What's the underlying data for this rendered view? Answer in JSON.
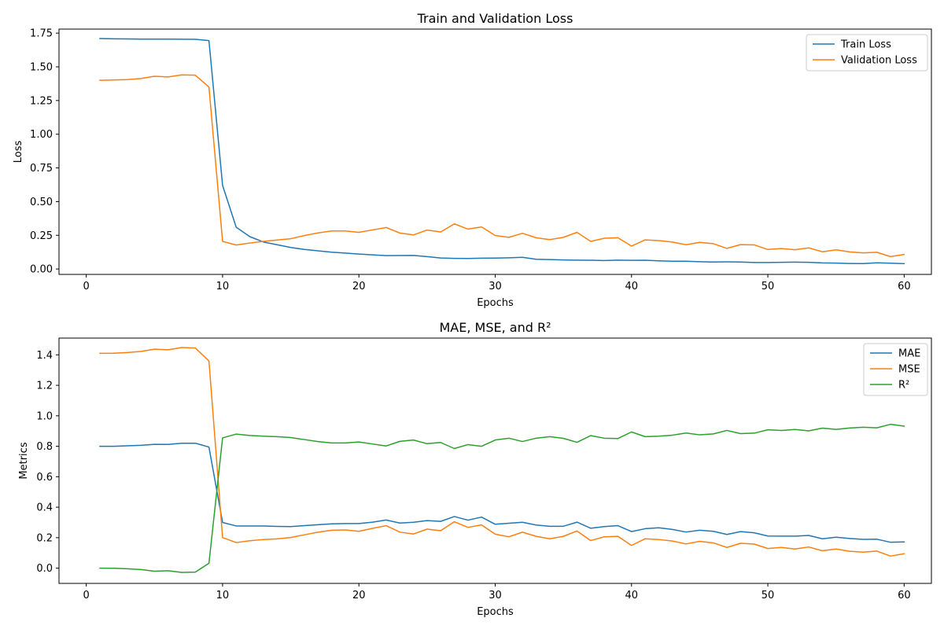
{
  "colors": {
    "blue": "#1f77b4",
    "orange": "#ff7f0e",
    "green": "#2ca02c"
  },
  "chart_data": [
    {
      "type": "line",
      "title": "Train and Validation Loss",
      "xlabel": "Epochs",
      "ylabel": "Loss",
      "xlim": [
        -2,
        62
      ],
      "ylim": [
        -0.04,
        1.78
      ],
      "xticks": [
        0,
        10,
        20,
        30,
        40,
        50,
        60
      ],
      "yticks": [
        0.0,
        0.25,
        0.5,
        0.75,
        1.0,
        1.25,
        1.5,
        1.75
      ],
      "ytick_decimals": 2,
      "legend_position": "top-right",
      "x": [
        1,
        2,
        3,
        4,
        5,
        6,
        7,
        8,
        9,
        10,
        11,
        12,
        13,
        14,
        15,
        16,
        17,
        18,
        19,
        20,
        21,
        22,
        23,
        24,
        25,
        26,
        27,
        28,
        29,
        30,
        31,
        32,
        33,
        34,
        35,
        36,
        37,
        38,
        39,
        40,
        41,
        42,
        43,
        44,
        45,
        46,
        47,
        48,
        49,
        50,
        51,
        52,
        53,
        54,
        55,
        56,
        57,
        58,
        59,
        60
      ],
      "series": [
        {
          "name": "Train Loss",
          "color": "#1f77b4",
          "values": [
            1.71,
            1.708,
            1.707,
            1.706,
            1.706,
            1.706,
            1.705,
            1.704,
            1.695,
            0.62,
            0.31,
            0.24,
            0.2,
            0.18,
            0.16,
            0.145,
            0.135,
            0.125,
            0.118,
            0.111,
            0.105,
            0.099,
            0.1,
            0.101,
            0.092,
            0.082,
            0.079,
            0.078,
            0.08,
            0.081,
            0.083,
            0.087,
            0.072,
            0.07,
            0.067,
            0.066,
            0.065,
            0.063,
            0.066,
            0.064,
            0.065,
            0.061,
            0.058,
            0.058,
            0.054,
            0.052,
            0.053,
            0.052,
            0.048,
            0.048,
            0.05,
            0.051,
            0.05,
            0.045,
            0.044,
            0.041,
            0.04,
            0.046,
            0.043,
            0.04
          ]
        },
        {
          "name": "Validation Loss",
          "color": "#ff7f0e",
          "values": [
            1.4,
            1.402,
            1.405,
            1.413,
            1.43,
            1.425,
            1.44,
            1.438,
            1.35,
            0.205,
            0.178,
            0.193,
            0.205,
            0.215,
            0.225,
            0.248,
            0.268,
            0.282,
            0.282,
            0.272,
            0.29,
            0.308,
            0.267,
            0.253,
            0.289,
            0.275,
            0.335,
            0.296,
            0.312,
            0.249,
            0.235,
            0.265,
            0.232,
            0.218,
            0.235,
            0.272,
            0.205,
            0.228,
            0.232,
            0.17,
            0.216,
            0.211,
            0.2,
            0.18,
            0.198,
            0.188,
            0.153,
            0.181,
            0.179,
            0.145,
            0.152,
            0.143,
            0.157,
            0.128,
            0.142,
            0.127,
            0.12,
            0.124,
            0.092,
            0.108
          ]
        }
      ]
    },
    {
      "type": "line",
      "title": "MAE, MSE, and R²",
      "xlabel": "Epochs",
      "ylabel": "Metrics",
      "xlim": [
        -2,
        62
      ],
      "ylim": [
        -0.1,
        1.51
      ],
      "xticks": [
        0,
        10,
        20,
        30,
        40,
        50,
        60
      ],
      "yticks": [
        0.0,
        0.2,
        0.4,
        0.6,
        0.8,
        1.0,
        1.2,
        1.4
      ],
      "ytick_decimals": 1,
      "legend_position": "top-right",
      "x": [
        1,
        2,
        3,
        4,
        5,
        6,
        7,
        8,
        9,
        10,
        11,
        12,
        13,
        14,
        15,
        16,
        17,
        18,
        19,
        20,
        21,
        22,
        23,
        24,
        25,
        26,
        27,
        28,
        29,
        30,
        31,
        32,
        33,
        34,
        35,
        36,
        37,
        38,
        39,
        40,
        41,
        42,
        43,
        44,
        45,
        46,
        47,
        48,
        49,
        50,
        51,
        52,
        53,
        54,
        55,
        56,
        57,
        58,
        59,
        60
      ],
      "series": [
        {
          "name": "MAE",
          "color": "#1f77b4",
          "values": [
            0.8,
            0.8,
            0.803,
            0.806,
            0.813,
            0.812,
            0.82,
            0.82,
            0.795,
            0.3,
            0.277,
            0.277,
            0.277,
            0.274,
            0.273,
            0.279,
            0.285,
            0.291,
            0.293,
            0.293,
            0.302,
            0.316,
            0.296,
            0.301,
            0.312,
            0.307,
            0.339,
            0.315,
            0.335,
            0.288,
            0.295,
            0.301,
            0.283,
            0.275,
            0.275,
            0.302,
            0.262,
            0.273,
            0.279,
            0.24,
            0.259,
            0.265,
            0.254,
            0.237,
            0.249,
            0.242,
            0.221,
            0.24,
            0.232,
            0.211,
            0.21,
            0.21,
            0.215,
            0.193,
            0.203,
            0.195,
            0.189,
            0.19,
            0.17,
            0.172
          ]
        },
        {
          "name": "MSE",
          "color": "#ff7f0e",
          "values": [
            1.41,
            1.411,
            1.415,
            1.422,
            1.437,
            1.433,
            1.448,
            1.445,
            1.36,
            0.201,
            0.168,
            0.18,
            0.188,
            0.192,
            0.201,
            0.219,
            0.236,
            0.249,
            0.251,
            0.242,
            0.261,
            0.279,
            0.237,
            0.224,
            0.256,
            0.246,
            0.305,
            0.268,
            0.284,
            0.223,
            0.206,
            0.236,
            0.209,
            0.193,
            0.209,
            0.244,
            0.181,
            0.206,
            0.209,
            0.149,
            0.193,
            0.188,
            0.178,
            0.159,
            0.176,
            0.166,
            0.136,
            0.163,
            0.158,
            0.129,
            0.136,
            0.126,
            0.139,
            0.114,
            0.126,
            0.111,
            0.105,
            0.112,
            0.079,
            0.095
          ]
        },
        {
          "name": "R²",
          "color": "#2ca02c",
          "values": [
            0.0,
            -0.001,
            -0.004,
            -0.009,
            -0.02,
            -0.017,
            -0.028,
            -0.026,
            0.032,
            0.855,
            0.88,
            0.871,
            0.866,
            0.863,
            0.857,
            0.844,
            0.831,
            0.822,
            0.822,
            0.828,
            0.815,
            0.802,
            0.832,
            0.841,
            0.817,
            0.825,
            0.785,
            0.811,
            0.8,
            0.841,
            0.853,
            0.831,
            0.853,
            0.863,
            0.852,
            0.826,
            0.87,
            0.853,
            0.851,
            0.894,
            0.863,
            0.866,
            0.873,
            0.887,
            0.875,
            0.881,
            0.904,
            0.883,
            0.886,
            0.908,
            0.904,
            0.91,
            0.901,
            0.919,
            0.911,
            0.92,
            0.925,
            0.921,
            0.944,
            0.932
          ]
        }
      ]
    }
  ]
}
